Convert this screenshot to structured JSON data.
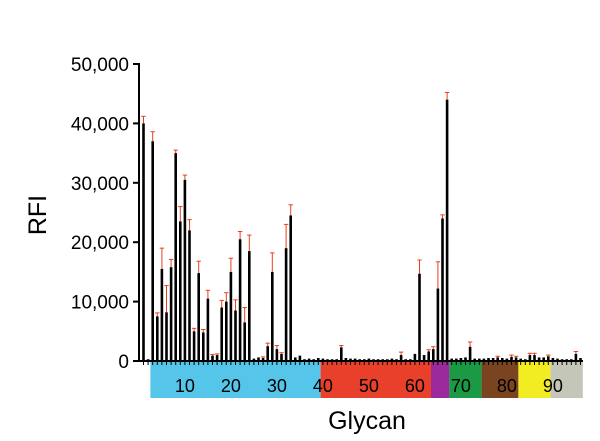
{
  "chart_data": {
    "type": "bar",
    "xlabel": "Glycan",
    "ylabel": "RFI",
    "ylim": [
      0,
      50000
    ],
    "yticks": [
      0,
      10000,
      20000,
      30000,
      40000,
      50000
    ],
    "ytick_labels": [
      "0",
      "10,000",
      "20,000",
      "30,000",
      "40,000",
      "50,000"
    ],
    "x_range": [
      1,
      96
    ],
    "x_tick_labels": [
      {
        "value": 10,
        "label": "10"
      },
      {
        "value": 20,
        "label": "20"
      },
      {
        "value": 30,
        "label": "30"
      },
      {
        "value": 40,
        "label": "40"
      },
      {
        "value": 50,
        "label": "50"
      },
      {
        "value": 60,
        "label": "60"
      },
      {
        "value": 70,
        "label": "70"
      },
      {
        "value": 80,
        "label": "80"
      },
      {
        "value": 90,
        "label": "90"
      }
    ],
    "bar_color": "#000000",
    "error_color": "#e8401c",
    "categories": [
      "1",
      "2",
      "3",
      "4",
      "5",
      "6",
      "7",
      "8",
      "9",
      "10",
      "11",
      "12",
      "13",
      "14",
      "15",
      "16",
      "17",
      "18",
      "19",
      "20",
      "21",
      "22",
      "23",
      "24",
      "25",
      "26",
      "27",
      "28",
      "29",
      "30",
      "31",
      "32",
      "33",
      "34",
      "35",
      "36",
      "37",
      "38",
      "39",
      "40",
      "41",
      "42",
      "43",
      "44",
      "45",
      "46",
      "47",
      "48",
      "49",
      "50",
      "51",
      "52",
      "53",
      "54",
      "55",
      "56",
      "57",
      "58",
      "59",
      "60",
      "61",
      "62",
      "63",
      "64",
      "65",
      "66",
      "67",
      "68",
      "69",
      "70",
      "71",
      "72",
      "73",
      "74",
      "75",
      "76",
      "77",
      "78",
      "79",
      "80",
      "81",
      "82",
      "83",
      "84",
      "85",
      "86",
      "87",
      "88",
      "89",
      "90",
      "91",
      "92",
      "93",
      "94",
      "95",
      "96"
    ],
    "values": [
      40000,
      300,
      37000,
      7500,
      15500,
      8200,
      15800,
      35000,
      23500,
      30500,
      22000,
      5000,
      14800,
      4800,
      10500,
      900,
      1000,
      9000,
      10000,
      15000,
      8500,
      20500,
      6500,
      18500,
      400,
      600,
      500,
      2500,
      15000,
      2000,
      1200,
      19000,
      24500,
      600,
      900,
      300,
      400,
      300,
      500,
      400,
      300,
      300,
      300,
      2300,
      500,
      400,
      400,
      300,
      300,
      400,
      300,
      300,
      300,
      300,
      400,
      300,
      1000,
      300,
      300,
      1200,
      14700,
      1000,
      1600,
      2000,
      12200,
      24000,
      44000,
      400,
      400,
      500,
      600,
      2400,
      400,
      400,
      400,
      500,
      500,
      600,
      500,
      400,
      700,
      600,
      400,
      300,
      1000,
      1000,
      600,
      600,
      800,
      500,
      400,
      300,
      300,
      300,
      1200,
      500
    ],
    "errors": [
      1200,
      0,
      1600,
      600,
      3500,
      4500,
      1300,
      500,
      2500,
      800,
      1800,
      500,
      2000,
      500,
      1400,
      200,
      200,
      1200,
      1500,
      2300,
      1800,
      1300,
      2500,
      2700,
      0,
      0,
      200,
      500,
      3200,
      600,
      200,
      4000,
      1800,
      0,
      0,
      0,
      0,
      0,
      0,
      0,
      0,
      0,
      0,
      300,
      0,
      0,
      0,
      0,
      0,
      0,
      0,
      0,
      0,
      0,
      0,
      0,
      500,
      0,
      0,
      0,
      2300,
      0,
      300,
      400,
      4500,
      600,
      1200,
      0,
      0,
      0,
      0,
      800,
      0,
      0,
      0,
      0,
      0,
      200,
      0,
      0,
      300,
      200,
      0,
      0,
      300,
      300,
      0,
      0,
      200,
      0,
      0,
      0,
      0,
      0,
      400,
      0
    ],
    "category_bands": [
      {
        "from": 3,
        "to": 39,
        "color": "#56c5ea"
      },
      {
        "from": 40,
        "to": 63,
        "color": "#e8402a"
      },
      {
        "from": 64,
        "to": 67,
        "color": "#9b2b9c"
      },
      {
        "from": 68,
        "to": 74,
        "color": "#1a9a45"
      },
      {
        "from": 75,
        "to": 82,
        "color": "#7b4420"
      },
      {
        "from": 83,
        "to": 89,
        "color": "#f2ec22"
      },
      {
        "from": 90,
        "to": 96,
        "color": "#c4c6b8"
      }
    ]
  }
}
